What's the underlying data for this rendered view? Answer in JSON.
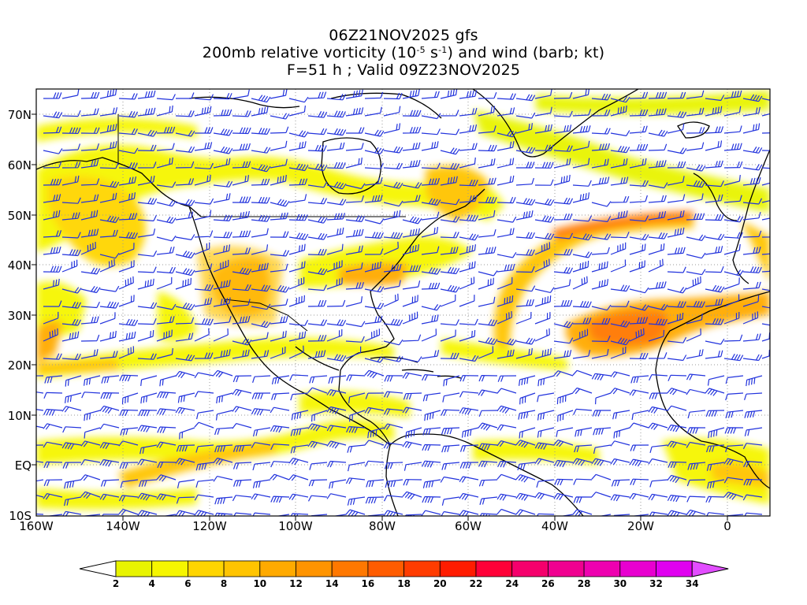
{
  "title": {
    "line1": "06Z21NOV2025 gfs",
    "line2_prefix": "200mb relative vorticity (10",
    "line2_exp1": "-5",
    "line2_mid": " s",
    "line2_exp2": "-1",
    "line2_suffix": ") and wind (barb; kt)",
    "line3": "F=51 h ; Valid 09Z23NOV2025"
  },
  "map": {
    "lat_labels": [
      "70N",
      "60N",
      "50N",
      "40N",
      "30N",
      "20N",
      "10N",
      "EQ",
      "10S"
    ],
    "lon_labels": [
      "160W",
      "140W",
      "120W",
      "100W",
      "80W",
      "60W",
      "40W",
      "20W",
      "0"
    ],
    "lat_range": [
      -10,
      75
    ],
    "lon_range": [
      -160,
      10
    ],
    "grid_color": "#999999",
    "coast_color": "#000000",
    "barb_color": "#2233dd"
  },
  "colorbar": {
    "labels": [
      "2",
      "4",
      "6",
      "8",
      "10",
      "12",
      "14",
      "16",
      "18",
      "20",
      "22",
      "24",
      "26",
      "28",
      "30",
      "32",
      "34"
    ],
    "colors": [
      "#e8f400",
      "#f6f600",
      "#ffd500",
      "#ffc400",
      "#ffaa00",
      "#ff9400",
      "#ff7800",
      "#ff5c00",
      "#ff3c00",
      "#ff1c00",
      "#ff0038",
      "#f5006c",
      "#f00090",
      "#ee00b0",
      "#e800d0",
      "#e000f0"
    ],
    "under_color": "#ffffff",
    "over_color": "#e24dff"
  }
}
